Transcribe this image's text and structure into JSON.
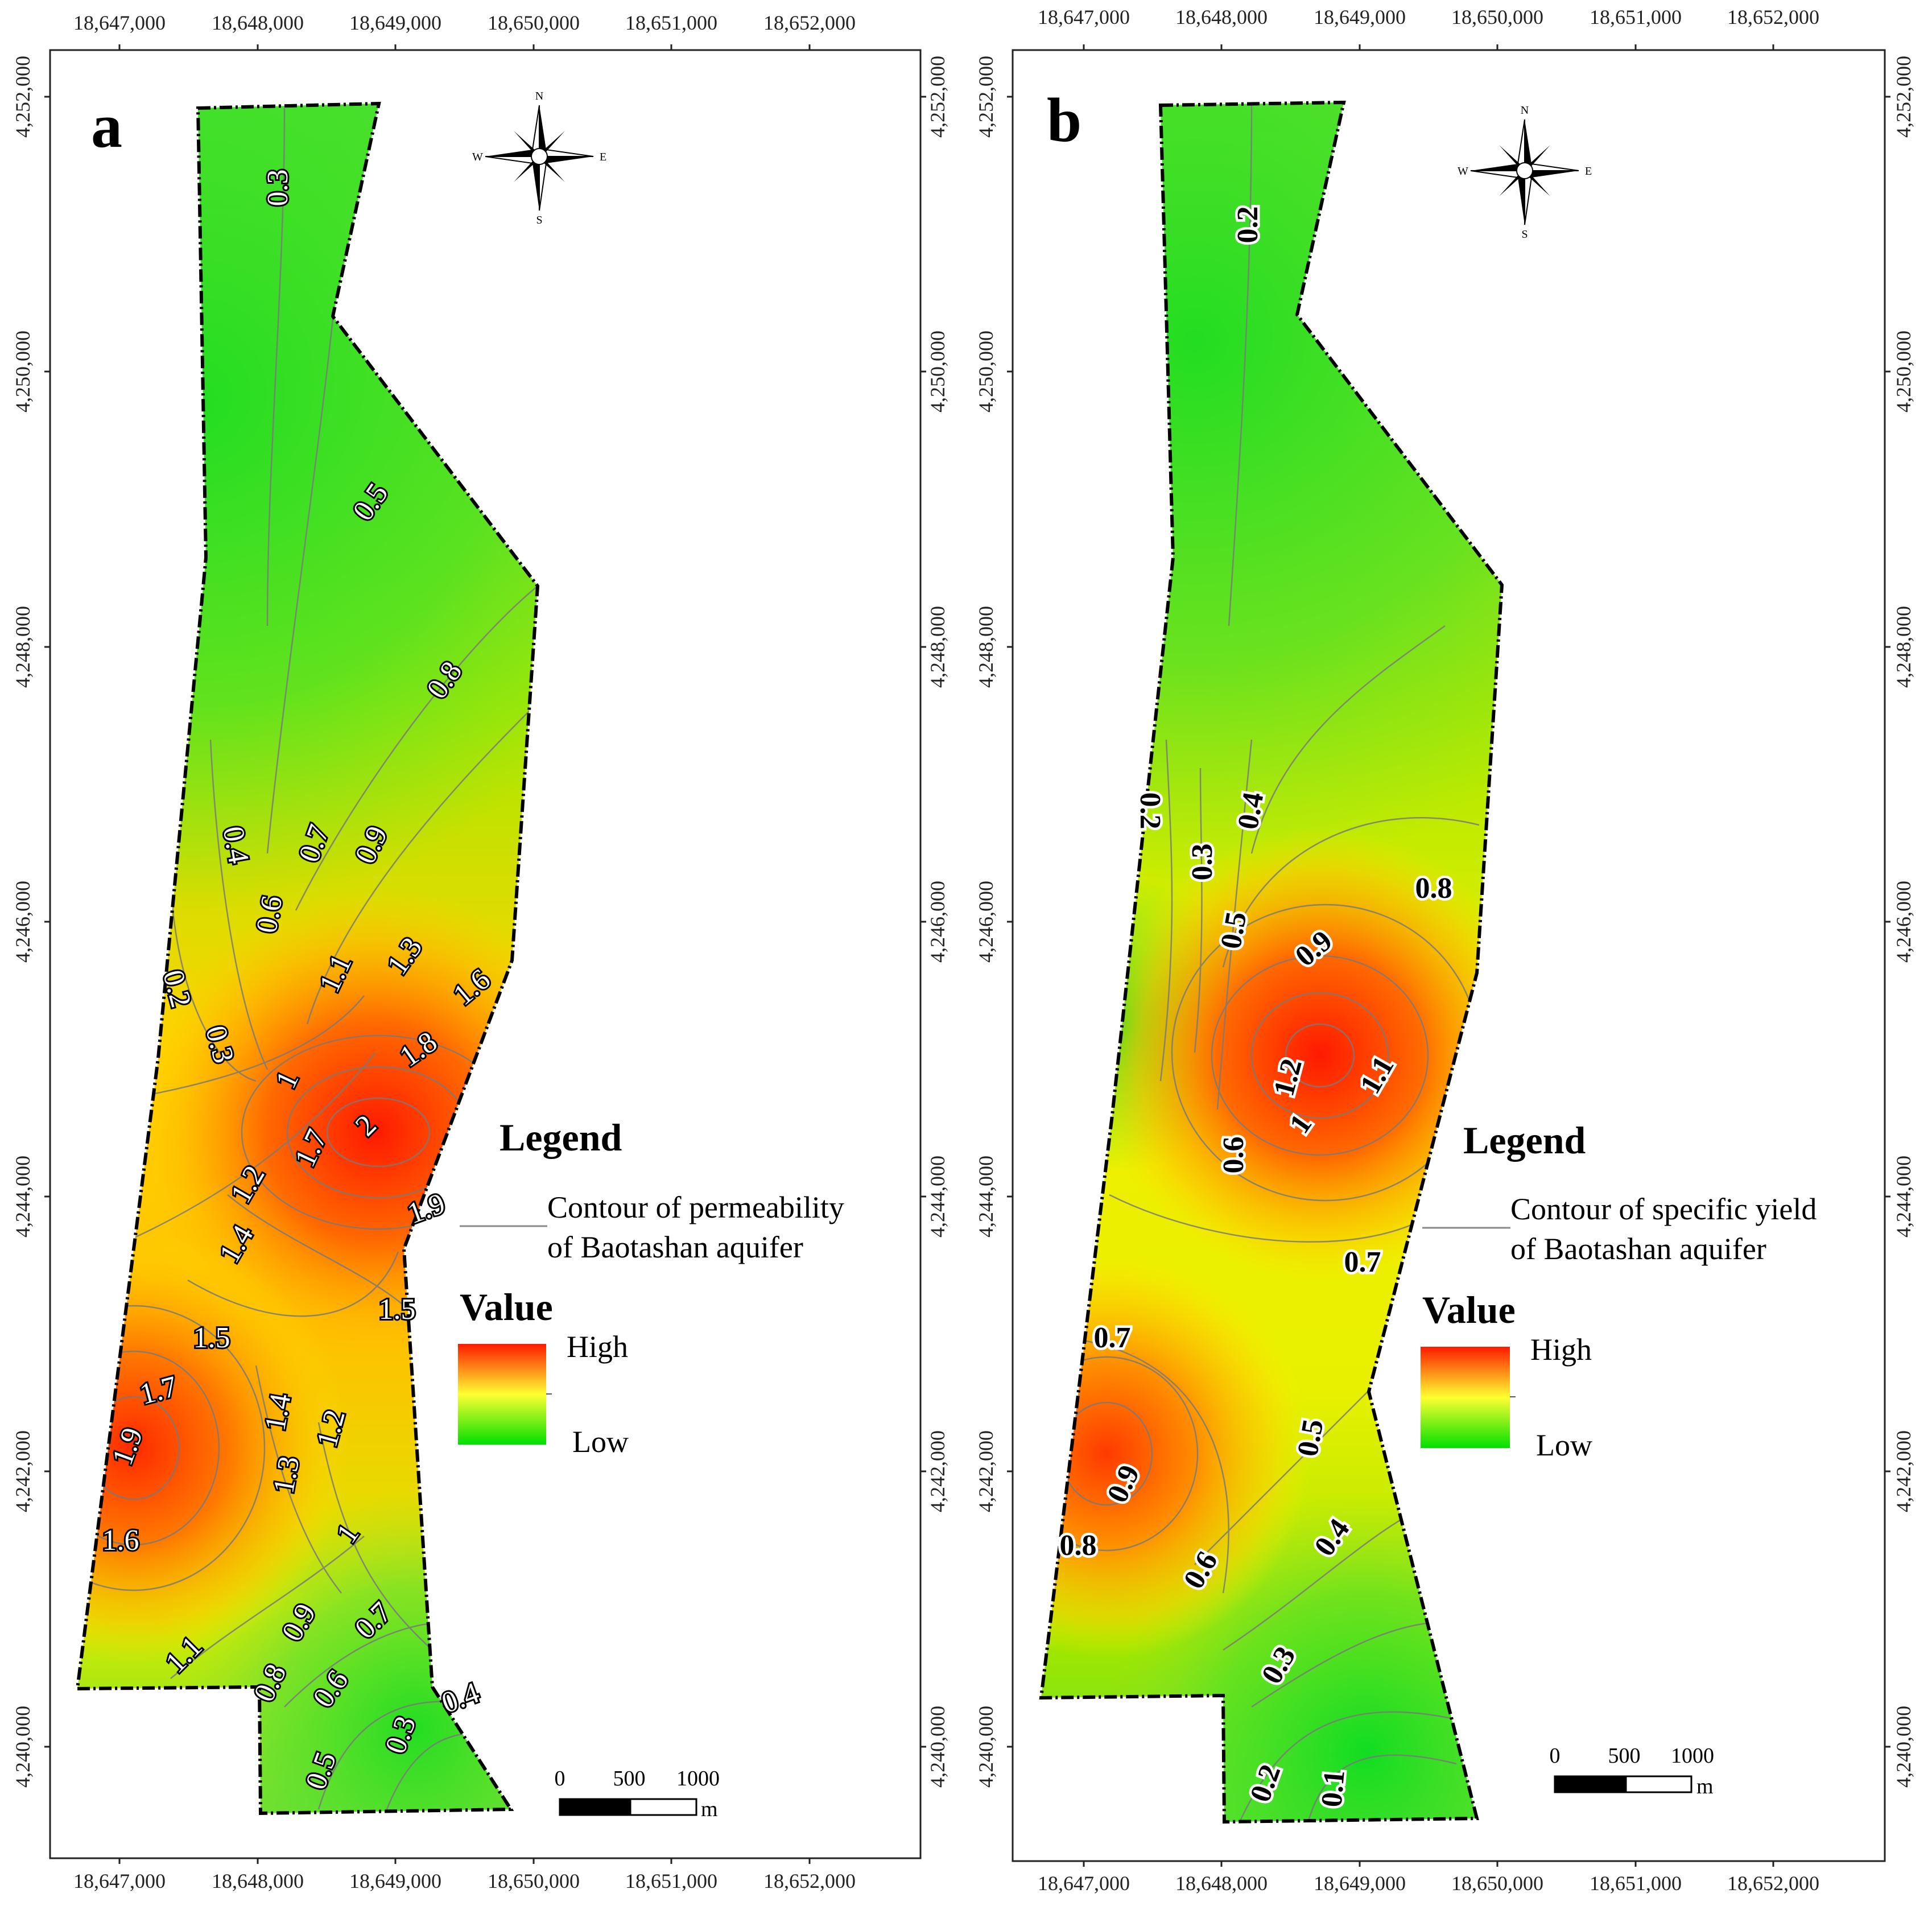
{
  "panels": [
    {
      "letter": "a",
      "ticks_x_top": [
        "18,647,000",
        "18,648,000",
        "18,649,000",
        "18,650,000",
        "18,651,000",
        "18,652,000"
      ],
      "ticks_x_bottom": [
        "18,647,000",
        "18,648,000",
        "18,649,000",
        "18,650,000",
        "18,651,000",
        "18,652,000"
      ],
      "ticks_y": [
        "4,252,000",
        "4,250,000",
        "4,248,000",
        "4,246,000",
        "4,244,000",
        "4,242,000",
        "4,240,000"
      ],
      "legend": {
        "title": "Legend",
        "contour_line1": "Contour of permeability",
        "contour_line2": "of Baotashan aquifer",
        "value_title": "Value",
        "high": "High",
        "low": "Low"
      },
      "compass": {
        "n": "N",
        "s": "S",
        "e": "E",
        "w": "W"
      },
      "scale": {
        "t0": "0",
        "t1": "500",
        "t2": "1000",
        "unit": "m"
      },
      "contour_labels": [
        "0.3",
        "0.5",
        "0.8",
        "0.4",
        "0.7",
        "0.9",
        "0.6",
        "1.3",
        "1.1",
        "1.6",
        "0.2",
        "0.3",
        "1.8",
        "1",
        "2",
        "1.7",
        "1.2",
        "1.9",
        "1.4",
        "1.5",
        "1.5",
        "1.7",
        "1.4",
        "1.2",
        "1.9",
        "1.3",
        "1",
        "1.6",
        "0.9",
        "0.7",
        "1.1",
        "0.8",
        "0.6",
        "0.4",
        "0.3",
        "0.5"
      ]
    },
    {
      "letter": "b",
      "ticks_x_top": [
        "18,647,000",
        "18,648,000",
        "18,649,000",
        "18,650,000",
        "18,651,000",
        "18,652,000"
      ],
      "ticks_x_bottom": [
        "18,647,000",
        "18,648,000",
        "18,649,000",
        "18,650,000",
        "18,651,000",
        "18,652,000"
      ],
      "ticks_y": [
        "4,252,000",
        "4,250,000",
        "4,248,000",
        "4,246,000",
        "4,244,000",
        "4,242,000",
        "4,240,000"
      ],
      "legend": {
        "title": "Legend",
        "contour_line1": "Contour of specific yield",
        "contour_line2": "of Baotashan aquifer",
        "value_title": "Value",
        "high": "High",
        "low": "Low"
      },
      "compass": {
        "n": "N",
        "s": "S",
        "e": "E",
        "w": "W"
      },
      "scale": {
        "t0": "0",
        "t1": "500",
        "t2": "1000",
        "unit": "m"
      },
      "contour_labels": [
        "0.2",
        "0.2",
        "0.4",
        "0.3",
        "0.8",
        "0.5",
        "0.9",
        "1.2",
        "1.1",
        "1",
        "0.6",
        "0.7",
        "0.7",
        "0.5",
        "0.9",
        "0.8",
        "0.6",
        "0.4",
        "0.3",
        "0.2",
        "0.1"
      ]
    }
  ],
  "colors": {
    "high": "#ff1a00",
    "mid": "#ffff00",
    "low": "#00e000",
    "contour": "#7a7a7a",
    "boundary": "#000000"
  }
}
